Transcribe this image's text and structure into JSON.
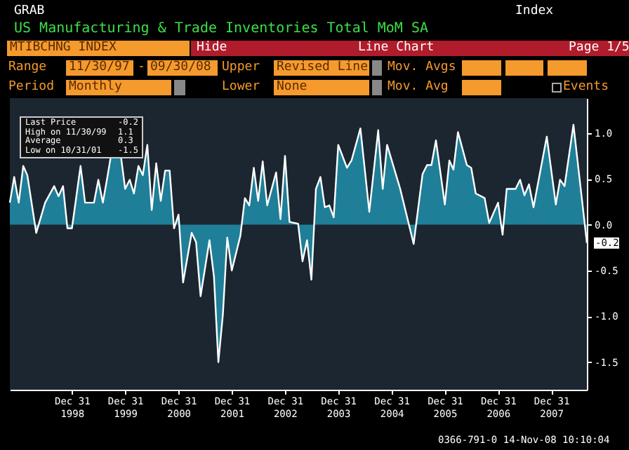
{
  "chart_data": {
    "type": "area",
    "title": "US Manufacturing & Trade Inventories Total MoM SA",
    "x": [
      "1997-11",
      "1997-12",
      "1998-01",
      "1998-02",
      "1998-03",
      "1998-05",
      "1998-07",
      "1998-09",
      "1998-10",
      "1998-11",
      "1998-12",
      "1999-01",
      "1999-03",
      "1999-04",
      "1999-06",
      "1999-07",
      "1999-08",
      "1999-09",
      "1999-11",
      "1999-12",
      "2000-01",
      "2000-02",
      "2000-03",
      "2000-04",
      "2000-05",
      "2000-06",
      "2000-07",
      "2000-08",
      "2000-09",
      "2000-10",
      "2000-11",
      "2000-12",
      "2001-01",
      "2001-02",
      "2001-04",
      "2001-05",
      "2001-06",
      "2001-08",
      "2001-09",
      "2001-10",
      "2001-11",
      "2001-12",
      "2002-01",
      "2002-03",
      "2002-04",
      "2002-05",
      "2002-06",
      "2002-07",
      "2002-08",
      "2002-09",
      "2002-11",
      "2002-12",
      "2003-01",
      "2003-02",
      "2003-04",
      "2003-05",
      "2003-06",
      "2003-07",
      "2003-08",
      "2003-09",
      "2003-10",
      "2003-11",
      "2003-12",
      "2004-01",
      "2004-03",
      "2004-04",
      "2004-06",
      "2004-08",
      "2004-10",
      "2004-11",
      "2004-12",
      "2005-03",
      "2005-06",
      "2005-08",
      "2005-09",
      "2005-10",
      "2005-11",
      "2006-01",
      "2006-02",
      "2006-03",
      "2006-04",
      "2006-06",
      "2006-07",
      "2006-08",
      "2006-10",
      "2006-11",
      "2007-01",
      "2007-02",
      "2007-03",
      "2007-05",
      "2007-06",
      "2007-07",
      "2007-08",
      "2007-09",
      "2007-12",
      "2008-02",
      "2008-03",
      "2008-04",
      "2008-06",
      "2008-09"
    ],
    "series": [
      {
        "color": "#1f7f98",
        "values": [
          0.24,
          0.52,
          0.24,
          0.64,
          0.54,
          -0.09,
          0.24,
          0.42,
          0.31,
          0.42,
          -0.04,
          -0.04,
          0.64,
          0.24,
          0.24,
          0.49,
          0.24,
          0.52,
          1.1,
          0.77,
          0.39,
          0.49,
          0.34,
          0.64,
          0.54,
          0.87,
          0.16,
          0.67,
          0.26,
          0.59,
          0.59,
          -0.04,
          0.11,
          -0.63,
          -0.09,
          -0.19,
          -0.78,
          -0.17,
          -0.57,
          -1.5,
          -0.98,
          -0.14,
          -0.5,
          -0.12,
          0.29,
          0.21,
          0.62,
          0.26,
          0.69,
          0.21,
          0.57,
          0.06,
          0.75,
          0.03,
          0.01,
          -0.4,
          -0.17,
          -0.6,
          0.39,
          0.52,
          0.19,
          0.21,
          0.08,
          0.87,
          0.62,
          0.7,
          1.05,
          0.14,
          1.03,
          0.39,
          0.87,
          0.39,
          -0.21,
          0.55,
          0.65,
          0.65,
          0.92,
          0.22,
          0.7,
          0.6,
          1.01,
          0.65,
          0.62,
          0.34,
          0.29,
          0.02,
          0.24,
          -0.11,
          0.39,
          0.39,
          0.49,
          0.32,
          0.44,
          0.19,
          0.96,
          0.22,
          0.49,
          0.42,
          1.09,
          -0.2
        ]
      }
    ],
    "xlim": [
      "1997-11",
      "2008-09"
    ],
    "xticks": [
      {
        "value": "1998-12-31",
        "label": "Dec 31 1998"
      },
      {
        "value": "1999-12-31",
        "label": "Dec 31 1999"
      },
      {
        "value": "2000-12-31",
        "label": "Dec 31 2000"
      },
      {
        "value": "2001-12-31",
        "label": "Dec 31 2001"
      },
      {
        "value": "2002-12-31",
        "label": "Dec 31 2002"
      },
      {
        "value": "2003-12-31",
        "label": "Dec 31 2003"
      },
      {
        "value": "2004-12-31",
        "label": "Dec 31 2004"
      },
      {
        "value": "2005-12-31",
        "label": "Dec 31 2005"
      },
      {
        "value": "2006-12-31",
        "label": "Dec 31 2006"
      },
      {
        "value": "2007-12-31",
        "label": "Dec 31 2007"
      }
    ],
    "ylim": [
      -1.8,
      1.38
    ],
    "yticks": [
      {
        "value": 1,
        "label": "1.0"
      },
      {
        "value": 0.5,
        "label": "0.5"
      },
      {
        "value": 0,
        "label": "0.0"
      },
      {
        "value": -0.5,
        "label": "-0.5"
      },
      {
        "value": -1,
        "label": "-1.0"
      },
      {
        "value": -1.5,
        "label": "-1.5"
      }
    ],
    "annotations": [
      "GRAB",
      "Index",
      "MTIBCHNG INDEX",
      "Hide",
      "Line Chart",
      "Page 1/5",
      "Range",
      "11/30/97",
      "-",
      "09/30/08",
      "Upper",
      "Revised Line",
      "Mov. Avgs",
      "Period",
      "Monthly",
      "Lower",
      "None",
      "Mov. Avg",
      "Events",
      "Last Price",
      "-0.2",
      "High on 11/30/99",
      "1.1",
      "Average",
      "0.3",
      "Low on 10/31/01",
      "-1.5",
      {
        "text": "-0.2",
        "x": "2008-09",
        "y": -0.2
      },
      "0366-791-0 14-Nov-08 10:10:04"
    ]
  }
}
